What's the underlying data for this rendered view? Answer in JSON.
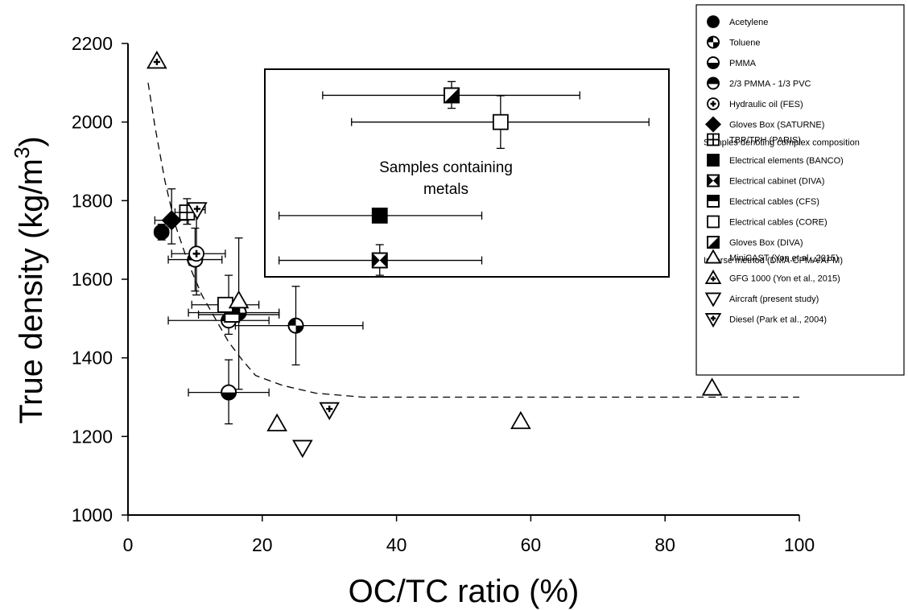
{
  "chart_data": {
    "type": "scatter",
    "xlabel": "OC/TC ratio (%)",
    "ylabel": "True density (kg/m",
    "ylabel_sup": "3",
    "ylabel_close": ")",
    "xlim": [
      0,
      100
    ],
    "ylim": [
      1000,
      2200
    ],
    "xticks": [
      0,
      20,
      40,
      60,
      80,
      100
    ],
    "yticks": [
      1000,
      1200,
      1400,
      1600,
      1800,
      2000,
      2200
    ],
    "grid": false,
    "legend_position": "top-right",
    "annotation": [
      "Samples containing",
      "metals"
    ],
    "legend_group_headers": [
      {
        "after_index": 5,
        "text": "Samples denoting complex composition"
      },
      {
        "after_index": 11,
        "text": "Inverse method (DMA-CPMA/APM)"
      }
    ],
    "series": [
      {
        "name": "Acetylene",
        "marker": "circle-filled",
        "points": [
          {
            "x": 5,
            "y": 1720,
            "xerr": [
              4,
              6
            ],
            "yerr": [
              1700,
              1740
            ]
          }
        ]
      },
      {
        "name": "Toluene",
        "marker": "circle-quarter",
        "points": [
          {
            "x": 25,
            "y": 1482,
            "xerr": [
              16,
              35
            ],
            "yerr": [
              1382,
              1582
            ]
          },
          {
            "x": 16.5,
            "y": 1515,
            "xerr": [
              9,
              22.5
            ],
            "yerr": [
              1320,
              1705
            ]
          }
        ]
      },
      {
        "name": "PMMA",
        "marker": "circle-half-bottom",
        "points": [
          {
            "x": 15,
            "y": 1312,
            "xerr": [
              9,
              21
            ],
            "yerr": [
              1232,
              1395
            ]
          }
        ]
      },
      {
        "name": "2/3 PMMA - 1/3 PVC",
        "marker": "circle-half-top",
        "points": [
          {
            "x": 15,
            "y": 1495,
            "xerr": [
              6,
              21
            ],
            "yerr": [
              1460,
              1610
            ]
          },
          {
            "x": 10,
            "y": 1650,
            "xerr": [
              6,
              14
            ],
            "yerr": [
              1570,
              1730
            ]
          }
        ]
      },
      {
        "name": "Hydraulic oil (FES)",
        "marker": "circle-plus",
        "points": [
          {
            "x": 10.2,
            "y": 1665,
            "xerr": [
              6.5,
              14.5
            ],
            "yerr": [
              1560,
              1770
            ]
          }
        ]
      },
      {
        "name": "Gloves Box (SATURNE)",
        "marker": "diamond-filled",
        "points": [
          {
            "x": 6.5,
            "y": 1750,
            "xerr": [
              4,
              9
            ],
            "yerr": [
              1690,
              1830
            ]
          }
        ]
      },
      {
        "name": "TBP/TPH (PARIS)",
        "marker": "square-cross",
        "points": [
          {
            "x": 8.8,
            "y": 1770,
            "xerr": [
              7,
              10.5
            ],
            "yerr": [
              1740,
              1805
            ]
          }
        ]
      },
      {
        "name": "Electrical elements (BANCO)",
        "marker": "square-filled",
        "points": [
          {
            "x": 37.5,
            "y": 1762,
            "xerr": [
              22.5,
              52.7
            ],
            "yerr": [
              1762,
              1762
            ]
          }
        ]
      },
      {
        "name": "Electrical cabinet (DIVA)",
        "marker": "square-hourglass",
        "points": [
          {
            "x": 37.5,
            "y": 1648,
            "xerr": [
              22.5,
              52.7
            ],
            "yerr": [
              1610,
              1688
            ]
          }
        ]
      },
      {
        "name": "Electrical cables (CFS)",
        "marker": "square-half-top",
        "points": [
          {
            "x": 15.5,
            "y": 1510,
            "xerr": [
              10.5,
              22.5
            ],
            "yerr": [
              1500,
              1525
            ]
          }
        ]
      },
      {
        "name": "Electrical cables (CORE)",
        "marker": "square-open",
        "points": [
          {
            "x": 55.5,
            "y": 2000,
            "xerr": [
              33.3,
              77.6
            ],
            "yerr": [
              1933,
              2067
            ]
          },
          {
            "x": 14.5,
            "y": 1535,
            "xerr": [
              9.5,
              19.5
            ],
            "yerr": [
              1535,
              1535
            ]
          }
        ]
      },
      {
        "name": "Gloves Box (DIVA)",
        "marker": "square-diagonal",
        "points": [
          {
            "x": 48.2,
            "y": 2068,
            "xerr": [
              29,
              67.3
            ],
            "yerr": [
              2035,
              2103
            ]
          }
        ]
      },
      {
        "name": "MiniCAST (Yon et al., 2015)",
        "marker": "triangle-up-open",
        "points": [
          {
            "x": 16.5,
            "y": 1545
          },
          {
            "x": 22.2,
            "y": 1232
          },
          {
            "x": 58.5,
            "y": 1238
          },
          {
            "x": 87,
            "y": 1323
          }
        ]
      },
      {
        "name": "GFG 1000 (Yon et al., 2015)",
        "marker": "triangle-up-plus",
        "points": [
          {
            "x": 4.3,
            "y": 2155
          }
        ]
      },
      {
        "name": "Aircraft (present study)",
        "marker": "triangle-down-open",
        "points": [
          {
            "x": 26,
            "y": 1172
          }
        ]
      },
      {
        "name": "Diesel (Park et al., 2004)",
        "marker": "triangle-down-plus",
        "points": [
          {
            "x": 10.3,
            "y": 1777,
            "xerr": [
              9.3,
              11.5
            ],
            "yerr": [
              1777,
              1777
            ]
          },
          {
            "x": 30,
            "y": 1268
          }
        ]
      }
    ],
    "fit_curve": {
      "style": "dashed",
      "points": [
        [
          3,
          2100
        ],
        [
          4,
          1990
        ],
        [
          5.5,
          1850
        ],
        [
          7,
          1740
        ],
        [
          9,
          1640
        ],
        [
          11,
          1560
        ],
        [
          13,
          1500
        ],
        [
          15,
          1440
        ],
        [
          17,
          1395
        ],
        [
          19,
          1355
        ],
        [
          23,
          1330
        ],
        [
          28,
          1310
        ],
        [
          35,
          1300
        ],
        [
          50,
          1300
        ],
        [
          100,
          1300
        ]
      ]
    }
  }
}
